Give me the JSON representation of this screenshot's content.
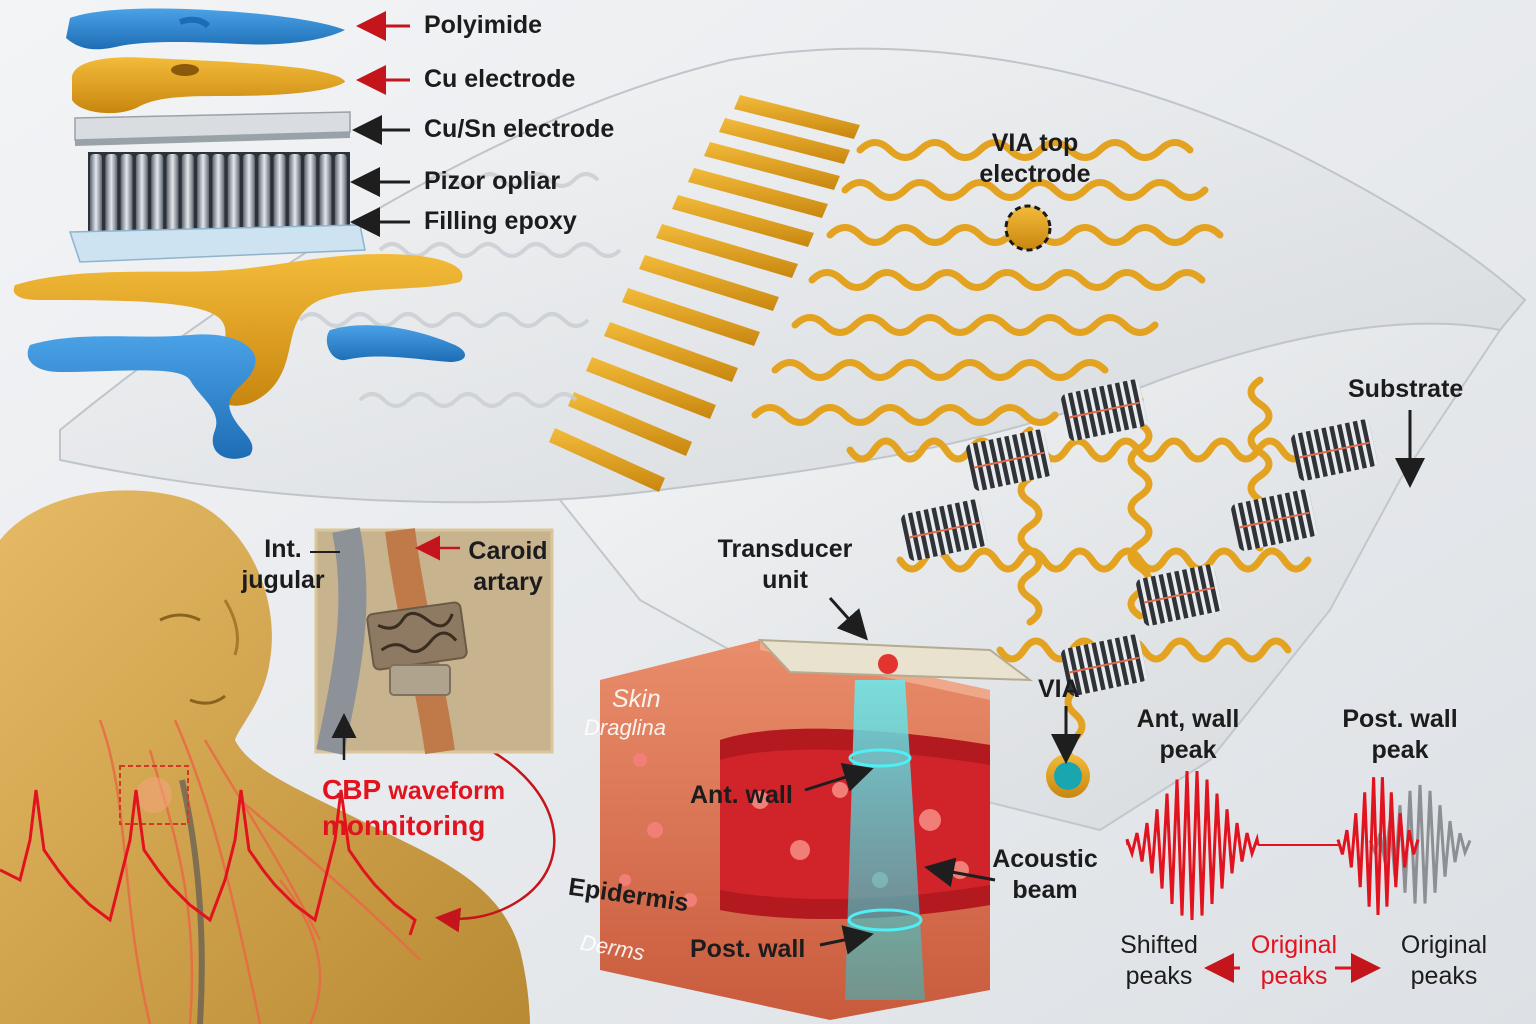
{
  "layers": {
    "polyimide": "Polyimide",
    "cu_electrode": "Cu electrode",
    "cusn_electrode": "Cu/Sn electrode",
    "pizor_opliar": "Pizor opliar",
    "filling_epoxy": "Filling epoxy"
  },
  "patch": {
    "via_top_line1": "VIA top",
    "via_top_line2": "electrode",
    "substrate": "Substrate",
    "via": "VIA",
    "transducer_line1": "Transducer",
    "transducer_line2": "unit"
  },
  "neck": {
    "int_line1": "Int.",
    "int_line2": "jugular",
    "caroid_line1": "Caroid",
    "caroid_line2": "artary",
    "cbp_word": "CBP",
    "waveform_word": "waveform",
    "monitoring": "monnitoring"
  },
  "tissue": {
    "skin": "Skin",
    "draging": "Draglina",
    "ant_wall": "Ant. wall",
    "epidermis": "Epidermis",
    "dermis": "Derms",
    "post_wall": "Post. wall",
    "acoustic_line1": "Acoustic",
    "acoustic_line2": "beam"
  },
  "signal": {
    "ant_peak_line1": "Ant, wall",
    "ant_peak_line2": "peak",
    "post_peak_line1": "Post. wall",
    "post_peak_line2": "peak",
    "shifted_line1": "Shifted",
    "shifted_line2": "peaks",
    "original_mid_line1": "Original",
    "original_mid_line2": "peaks",
    "original_right_line1": "Original",
    "original_right_line2": "peaks"
  },
  "colors": {
    "gold": "#e8a21c",
    "blue": "#2e86cf",
    "red": "#e1131f",
    "cyan": "#28c4cf",
    "skin_tone": "#d8a851"
  }
}
